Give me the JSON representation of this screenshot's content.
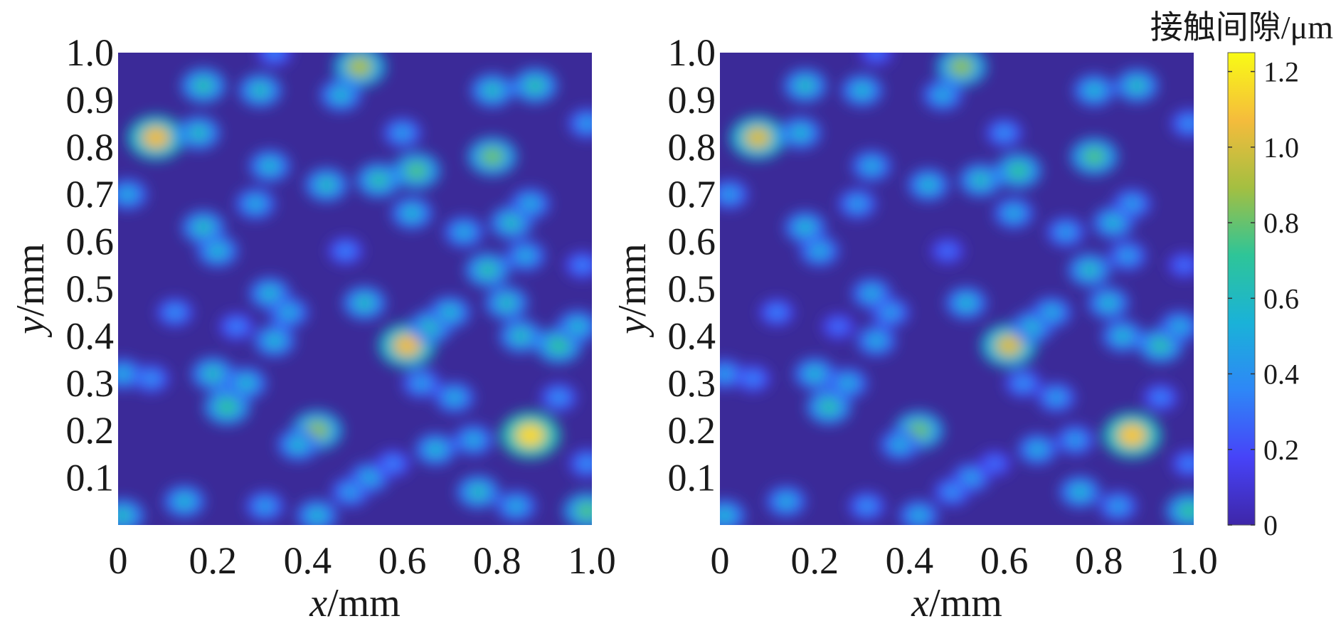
{
  "colormap": [
    "#3e26a8",
    "#4743f8",
    "#2e87f7",
    "#1ab2d8",
    "#2ec598",
    "#a4bf41",
    "#f5bc3c",
    "#f9fb15"
  ],
  "panel_background": "#3b2a98",
  "colorbar": {
    "title": "接触间隙/μm",
    "min": 0,
    "max": 1.25,
    "tick_values": [
      0,
      0.2,
      0.4,
      0.6,
      0.8,
      1.0,
      1.2
    ],
    "tick_labels": [
      "0",
      "0.2",
      "0.4",
      "0.6",
      "0.8",
      "1.0",
      "1.2"
    ]
  },
  "chart_data": [
    {
      "type": "heatmap",
      "title": "",
      "xlabel": {
        "italic": "x",
        "unit": "/mm"
      },
      "ylabel": {
        "italic": "y",
        "unit": "/mm"
      },
      "xlim": [
        0,
        1.0
      ],
      "ylim": [
        0,
        1.0
      ],
      "xticks": [
        "0",
        "0.2",
        "0.4",
        "0.6",
        "0.8",
        "1.0"
      ],
      "yticks": [
        "0.1",
        "0.2",
        "0.3",
        "0.4",
        "0.5",
        "0.6",
        "0.7",
        "0.8",
        "0.9",
        "1.0"
      ],
      "value_unit": "μm",
      "spots": [
        {
          "x": 0.08,
          "y": 0.82,
          "v": 1.05
        },
        {
          "x": 0.17,
          "y": 0.83,
          "v": 0.6
        },
        {
          "x": 0.18,
          "y": 0.93,
          "v": 0.65
        },
        {
          "x": 0.3,
          "y": 0.92,
          "v": 0.6
        },
        {
          "x": 0.51,
          "y": 0.97,
          "v": 0.9
        },
        {
          "x": 0.47,
          "y": 0.91,
          "v": 0.55
        },
        {
          "x": 0.33,
          "y": 1.0,
          "v": 0.35
        },
        {
          "x": 0.79,
          "y": 0.92,
          "v": 0.6
        },
        {
          "x": 0.88,
          "y": 0.93,
          "v": 0.65
        },
        {
          "x": 0.79,
          "y": 0.78,
          "v": 0.8
        },
        {
          "x": 0.99,
          "y": 0.85,
          "v": 0.45
        },
        {
          "x": 0.32,
          "y": 0.76,
          "v": 0.55
        },
        {
          "x": 0.29,
          "y": 0.68,
          "v": 0.5
        },
        {
          "x": 0.44,
          "y": 0.72,
          "v": 0.6
        },
        {
          "x": 0.55,
          "y": 0.73,
          "v": 0.65
        },
        {
          "x": 0.63,
          "y": 0.75,
          "v": 0.75
        },
        {
          "x": 0.62,
          "y": 0.66,
          "v": 0.55
        },
        {
          "x": 0.6,
          "y": 0.83,
          "v": 0.45
        },
        {
          "x": 0.18,
          "y": 0.63,
          "v": 0.6
        },
        {
          "x": 0.21,
          "y": 0.58,
          "v": 0.55
        },
        {
          "x": 0.73,
          "y": 0.62,
          "v": 0.5
        },
        {
          "x": 0.83,
          "y": 0.64,
          "v": 0.6
        },
        {
          "x": 0.87,
          "y": 0.68,
          "v": 0.5
        },
        {
          "x": 0.86,
          "y": 0.57,
          "v": 0.5
        },
        {
          "x": 0.78,
          "y": 0.54,
          "v": 0.65
        },
        {
          "x": 0.82,
          "y": 0.47,
          "v": 0.6
        },
        {
          "x": 0.85,
          "y": 0.4,
          "v": 0.6
        },
        {
          "x": 0.93,
          "y": 0.38,
          "v": 0.7
        },
        {
          "x": 0.97,
          "y": 0.42,
          "v": 0.55
        },
        {
          "x": 0.61,
          "y": 0.38,
          "v": 1.05
        },
        {
          "x": 0.66,
          "y": 0.42,
          "v": 0.6
        },
        {
          "x": 0.7,
          "y": 0.45,
          "v": 0.55
        },
        {
          "x": 0.52,
          "y": 0.47,
          "v": 0.6
        },
        {
          "x": 0.32,
          "y": 0.49,
          "v": 0.55
        },
        {
          "x": 0.36,
          "y": 0.45,
          "v": 0.5
        },
        {
          "x": 0.33,
          "y": 0.39,
          "v": 0.55
        },
        {
          "x": 0.12,
          "y": 0.45,
          "v": 0.4
        },
        {
          "x": 0.07,
          "y": 0.31,
          "v": 0.4
        },
        {
          "x": 0.01,
          "y": 0.32,
          "v": 0.5
        },
        {
          "x": 0.2,
          "y": 0.32,
          "v": 0.6
        },
        {
          "x": 0.23,
          "y": 0.25,
          "v": 0.7
        },
        {
          "x": 0.27,
          "y": 0.3,
          "v": 0.55
        },
        {
          "x": 0.42,
          "y": 0.2,
          "v": 0.85
        },
        {
          "x": 0.38,
          "y": 0.17,
          "v": 0.55
        },
        {
          "x": 0.64,
          "y": 0.3,
          "v": 0.45
        },
        {
          "x": 0.71,
          "y": 0.27,
          "v": 0.5
        },
        {
          "x": 0.67,
          "y": 0.16,
          "v": 0.55
        },
        {
          "x": 0.75,
          "y": 0.18,
          "v": 0.5
        },
        {
          "x": 0.87,
          "y": 0.19,
          "v": 1.15
        },
        {
          "x": 0.53,
          "y": 0.1,
          "v": 0.5
        },
        {
          "x": 0.49,
          "y": 0.07,
          "v": 0.45
        },
        {
          "x": 0.76,
          "y": 0.07,
          "v": 0.6
        },
        {
          "x": 0.84,
          "y": 0.04,
          "v": 0.5
        },
        {
          "x": 0.14,
          "y": 0.05,
          "v": 0.55
        },
        {
          "x": 0.31,
          "y": 0.04,
          "v": 0.45
        },
        {
          "x": 0.42,
          "y": 0.02,
          "v": 0.55
        },
        {
          "x": 0.99,
          "y": 0.03,
          "v": 0.75
        },
        {
          "x": 0.01,
          "y": 0.02,
          "v": 0.6
        },
        {
          "x": 0.99,
          "y": 0.13,
          "v": 0.4
        },
        {
          "x": 0.58,
          "y": 0.13,
          "v": 0.35
        },
        {
          "x": 0.02,
          "y": 0.7,
          "v": 0.5
        },
        {
          "x": 0.48,
          "y": 0.58,
          "v": 0.35
        },
        {
          "x": 0.93,
          "y": 0.27,
          "v": 0.4
        },
        {
          "x": 0.98,
          "y": 0.55,
          "v": 0.35
        },
        {
          "x": 0.25,
          "y": 0.42,
          "v": 0.35
        }
      ]
    },
    {
      "type": "heatmap",
      "title": "",
      "xlabel": {
        "italic": "x",
        "unit": "/mm"
      },
      "ylabel": {
        "italic": "y",
        "unit": "/mm"
      },
      "xlim": [
        0,
        1.0
      ],
      "ylim": [
        0,
        1.0
      ],
      "xticks": [
        "0",
        "0.2",
        "0.4",
        "0.6",
        "0.8",
        "1.0"
      ],
      "yticks": [
        "0.1",
        "0.2",
        "0.3",
        "0.4",
        "0.5",
        "0.6",
        "0.7",
        "0.8",
        "0.9",
        "1.0"
      ],
      "value_unit": "μm",
      "spots": [
        {
          "x": 0.08,
          "y": 0.82,
          "v": 1.0
        },
        {
          "x": 0.17,
          "y": 0.83,
          "v": 0.55
        },
        {
          "x": 0.18,
          "y": 0.93,
          "v": 0.6
        },
        {
          "x": 0.3,
          "y": 0.92,
          "v": 0.55
        },
        {
          "x": 0.51,
          "y": 0.97,
          "v": 0.85
        },
        {
          "x": 0.47,
          "y": 0.91,
          "v": 0.5
        },
        {
          "x": 0.33,
          "y": 1.0,
          "v": 0.3
        },
        {
          "x": 0.79,
          "y": 0.92,
          "v": 0.55
        },
        {
          "x": 0.88,
          "y": 0.93,
          "v": 0.6
        },
        {
          "x": 0.79,
          "y": 0.78,
          "v": 0.75
        },
        {
          "x": 0.99,
          "y": 0.85,
          "v": 0.4
        },
        {
          "x": 0.32,
          "y": 0.76,
          "v": 0.5
        },
        {
          "x": 0.29,
          "y": 0.68,
          "v": 0.45
        },
        {
          "x": 0.44,
          "y": 0.72,
          "v": 0.55
        },
        {
          "x": 0.55,
          "y": 0.73,
          "v": 0.6
        },
        {
          "x": 0.63,
          "y": 0.75,
          "v": 0.7
        },
        {
          "x": 0.62,
          "y": 0.66,
          "v": 0.5
        },
        {
          "x": 0.6,
          "y": 0.83,
          "v": 0.4
        },
        {
          "x": 0.18,
          "y": 0.63,
          "v": 0.55
        },
        {
          "x": 0.21,
          "y": 0.58,
          "v": 0.5
        },
        {
          "x": 0.73,
          "y": 0.62,
          "v": 0.45
        },
        {
          "x": 0.83,
          "y": 0.64,
          "v": 0.55
        },
        {
          "x": 0.87,
          "y": 0.68,
          "v": 0.45
        },
        {
          "x": 0.86,
          "y": 0.57,
          "v": 0.45
        },
        {
          "x": 0.78,
          "y": 0.54,
          "v": 0.6
        },
        {
          "x": 0.82,
          "y": 0.47,
          "v": 0.55
        },
        {
          "x": 0.85,
          "y": 0.4,
          "v": 0.55
        },
        {
          "x": 0.93,
          "y": 0.38,
          "v": 0.65
        },
        {
          "x": 0.97,
          "y": 0.42,
          "v": 0.5
        },
        {
          "x": 0.61,
          "y": 0.38,
          "v": 1.0
        },
        {
          "x": 0.66,
          "y": 0.42,
          "v": 0.55
        },
        {
          "x": 0.7,
          "y": 0.45,
          "v": 0.5
        },
        {
          "x": 0.52,
          "y": 0.47,
          "v": 0.55
        },
        {
          "x": 0.32,
          "y": 0.49,
          "v": 0.5
        },
        {
          "x": 0.36,
          "y": 0.45,
          "v": 0.45
        },
        {
          "x": 0.33,
          "y": 0.39,
          "v": 0.5
        },
        {
          "x": 0.12,
          "y": 0.45,
          "v": 0.35
        },
        {
          "x": 0.07,
          "y": 0.31,
          "v": 0.35
        },
        {
          "x": 0.01,
          "y": 0.32,
          "v": 0.45
        },
        {
          "x": 0.2,
          "y": 0.32,
          "v": 0.55
        },
        {
          "x": 0.23,
          "y": 0.25,
          "v": 0.65
        },
        {
          "x": 0.27,
          "y": 0.3,
          "v": 0.5
        },
        {
          "x": 0.42,
          "y": 0.2,
          "v": 0.8
        },
        {
          "x": 0.38,
          "y": 0.17,
          "v": 0.5
        },
        {
          "x": 0.64,
          "y": 0.3,
          "v": 0.4
        },
        {
          "x": 0.71,
          "y": 0.27,
          "v": 0.45
        },
        {
          "x": 0.67,
          "y": 0.16,
          "v": 0.5
        },
        {
          "x": 0.75,
          "y": 0.18,
          "v": 0.45
        },
        {
          "x": 0.87,
          "y": 0.19,
          "v": 1.1
        },
        {
          "x": 0.53,
          "y": 0.1,
          "v": 0.45
        },
        {
          "x": 0.49,
          "y": 0.07,
          "v": 0.4
        },
        {
          "x": 0.76,
          "y": 0.07,
          "v": 0.55
        },
        {
          "x": 0.84,
          "y": 0.04,
          "v": 0.45
        },
        {
          "x": 0.14,
          "y": 0.05,
          "v": 0.5
        },
        {
          "x": 0.31,
          "y": 0.04,
          "v": 0.4
        },
        {
          "x": 0.42,
          "y": 0.02,
          "v": 0.5
        },
        {
          "x": 0.99,
          "y": 0.03,
          "v": 0.7
        },
        {
          "x": 0.01,
          "y": 0.02,
          "v": 0.55
        },
        {
          "x": 0.99,
          "y": 0.13,
          "v": 0.35
        },
        {
          "x": 0.58,
          "y": 0.13,
          "v": 0.3
        },
        {
          "x": 0.02,
          "y": 0.7,
          "v": 0.45
        },
        {
          "x": 0.48,
          "y": 0.58,
          "v": 0.3
        },
        {
          "x": 0.93,
          "y": 0.27,
          "v": 0.35
        },
        {
          "x": 0.98,
          "y": 0.55,
          "v": 0.3
        },
        {
          "x": 0.25,
          "y": 0.42,
          "v": 0.3
        }
      ]
    }
  ]
}
